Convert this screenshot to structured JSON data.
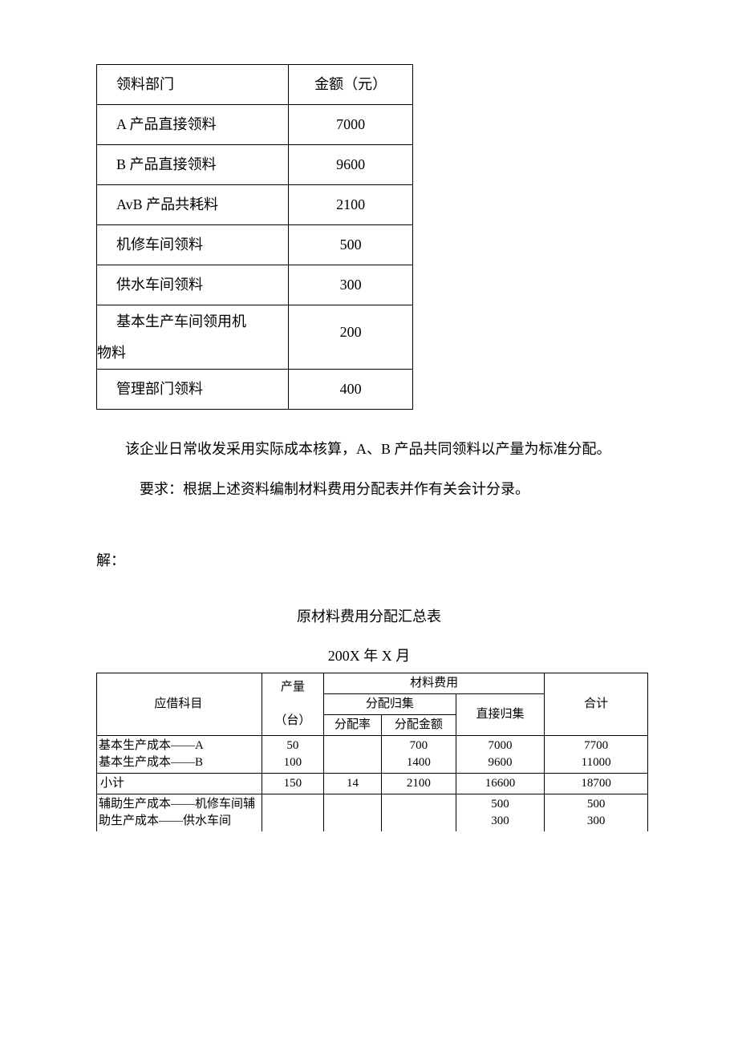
{
  "table1": {
    "columns": [
      "领料部门",
      "金额（元）"
    ],
    "rows": [
      [
        "A 产品直接领料",
        "7000"
      ],
      [
        "B 产品直接领料",
        "9600"
      ],
      [
        "AvB 产品共耗料",
        "2100"
      ],
      [
        "机修车间领料",
        "500"
      ],
      [
        "供水车间领料",
        "300"
      ],
      [
        "基本生产车间领用机物料",
        "200"
      ],
      [
        "管理部门领料",
        "400"
      ]
    ]
  },
  "paragraphs": {
    "p1": "该企业日常收发采用实际成本核算，A、B 产品共同领料以产量为标准分配。",
    "p2": "要求：根据上述资料编制材料费用分配表并作有关会计分录。",
    "solve": "解：",
    "title2": "原材料费用分配汇总表",
    "subtitle2": "200X 年 X 月"
  },
  "table2": {
    "header": {
      "subject": "应借科目",
      "output": "产量（台）",
      "output_line1": "产量",
      "output_line2": "（台）",
      "material_cost": "材料费用",
      "alloc_group": "分配归集",
      "direct_group": "直接归集",
      "alloc_rate": "分配率",
      "alloc_amount": "分配金额",
      "total": "合计"
    },
    "rows": [
      {
        "subject": "基本生产成本——A",
        "output": "50",
        "rate": "",
        "alloc_amount": "700",
        "direct": "7000",
        "total": "7700"
      },
      {
        "subject": "基本生产成本——B",
        "output": "100",
        "rate": "",
        "alloc_amount": "1400",
        "direct": "9600",
        "total": "11000"
      },
      {
        "subject": "小计",
        "output": "150",
        "rate": "14",
        "alloc_amount": "2100",
        "direct": "16600",
        "total": "18700",
        "indent": true
      },
      {
        "subject": "辅助生产成本——机修车间辅",
        "output": "",
        "rate": "",
        "alloc_amount": "",
        "direct": "500",
        "total": "500"
      },
      {
        "subject": "助生产成本——供水车间",
        "output": "",
        "rate": "",
        "alloc_amount": "",
        "direct": "300",
        "total": "300"
      }
    ]
  },
  "colors": {
    "text": "#000000",
    "border": "#000000",
    "background": "#ffffff"
  }
}
